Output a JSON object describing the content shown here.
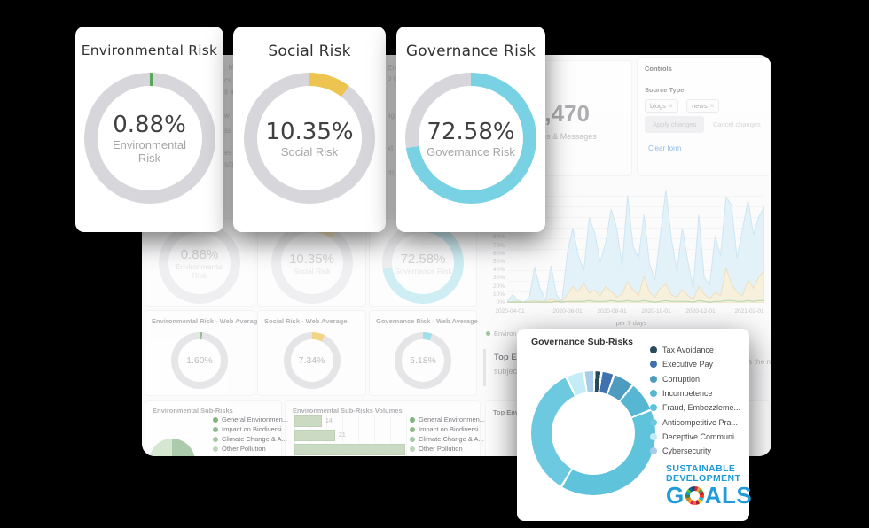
{
  "colors": {
    "env_green": "#58a65c",
    "social_yellow": "#edc44f",
    "gov_cyan": "#78d2e4",
    "track_gray": "#d7d7db",
    "sdg_blue": "#1f9cd7"
  },
  "chart_data": [
    {
      "type": "gauge-donut",
      "title": "Environmental Risk",
      "value_pct": 0.88,
      "value_label": "0.88%",
      "center_label_1": "Environmental",
      "center_label_2": "Risk",
      "color": "#58a65c",
      "track": "#d7d7db"
    },
    {
      "type": "gauge-donut",
      "title": "Social Risk",
      "value_pct": 10.35,
      "value_label": "10.35%",
      "center_label_1": "Social Risk",
      "center_label_2": "",
      "color": "#edc44f",
      "track": "#d7d7db"
    },
    {
      "type": "gauge-donut",
      "title": "Governance Risk",
      "value_pct": 72.58,
      "value_label": "72.58%",
      "center_label_1": "Governance Risk",
      "center_label_2": "",
      "color": "#78d2e4",
      "track": "#d7d7db"
    },
    {
      "type": "gauge-donut",
      "title": "Environmental Risk - Web Average",
      "value_pct": 1.6,
      "value_label": "1.60%",
      "color": "#58a65c",
      "track": "#dcdcdf"
    },
    {
      "type": "gauge-donut",
      "title": "Social Risk - Web Average",
      "value_pct": 7.34,
      "value_label": "7.34%",
      "color": "#edc44f",
      "track": "#dcdcdf"
    },
    {
      "type": "gauge-donut",
      "title": "Governance Risk - Web Average",
      "value_pct": 5.18,
      "value_label": "5.18%",
      "color": "#78d2e4",
      "track": "#dcdcdf"
    },
    {
      "type": "area",
      "x_tick_labels": [
        "2020-04-01",
        "2020-06-01",
        "2020-08-01",
        "2020-10-01",
        "2020-12-01",
        "2021-02-01"
      ],
      "xlabel": "per 7 days",
      "y_tick_labels": [
        "80%",
        "70%",
        "60%",
        "50%",
        "40%",
        "30%",
        "20%",
        "10%",
        "0%"
      ],
      "ylim_visible_ticks": [
        0,
        80
      ],
      "legend_fragment": "Environ",
      "series": [
        {
          "style": "area",
          "fill": "#d9edf7",
          "stroke": "#b9ddef",
          "values": [
            2,
            10,
            3,
            1,
            5,
            44,
            18,
            3,
            46,
            10,
            2,
            62,
            92,
            58,
            40,
            105,
            86,
            50,
            75,
            115,
            92,
            45,
            132,
            70,
            55,
            108,
            48,
            28,
            85,
            138,
            80,
            38,
            92,
            52,
            18,
            108,
            32,
            22,
            82,
            58,
            130,
            120,
            55,
            90,
            126,
            84,
            106,
            118
          ]
        },
        {
          "style": "area",
          "fill": "#f6ebcd",
          "stroke": "#e7d3a4",
          "values": [
            1,
            2,
            2,
            1,
            2,
            3,
            2,
            2,
            4,
            3,
            2,
            10,
            20,
            14,
            24,
            12,
            16,
            9,
            20,
            14,
            7,
            11,
            26,
            16,
            9,
            33,
            13,
            7,
            18,
            23,
            10,
            7,
            16,
            9,
            4,
            20,
            11,
            5,
            13,
            9,
            43,
            23,
            13,
            9,
            28,
            18,
            32,
            40
          ]
        },
        {
          "style": "line",
          "fill": "none",
          "stroke": "#8fc48f",
          "values": [
            1,
            1,
            1,
            1,
            1,
            1,
            1,
            1,
            1,
            2,
            1,
            2,
            2,
            2,
            2,
            3,
            2,
            2,
            2,
            3,
            2,
            2,
            3,
            2,
            2,
            3,
            2,
            1,
            2,
            3,
            2,
            2,
            2,
            2,
            1,
            3,
            2,
            1,
            2,
            2,
            3,
            3,
            2,
            2,
            3,
            2,
            3,
            3
          ]
        }
      ]
    },
    {
      "type": "bar-horizontal",
      "title": "Environmental Sub-Risks Volumes",
      "values": [
        14,
        21,
        57
      ],
      "value_labels": [
        "14",
        "21",
        ""
      ],
      "legend": [
        "General Environmen...",
        "Impact on Biodiversi...",
        "Climate Change & A...",
        "Other Pollution"
      ]
    },
    {
      "type": "donut",
      "title": "Governance Sub-Risks",
      "slices": [
        {
          "label": "Tax Avoidance",
          "value": 1.3,
          "color": "#264b5d"
        },
        {
          "label": "Executive Pay",
          "value": 2.8,
          "color": "#3f72ae"
        },
        {
          "label": "Corruption",
          "value": 5.0,
          "color": "#4d9cc0"
        },
        {
          "label": "Incompetence",
          "value": 7.5,
          "color": "#57b7d3"
        },
        {
          "label": "Fraud, Embezzleme...",
          "value": 40.0,
          "color": "#5fc3dc"
        },
        {
          "label": "Anticompetitive Pra...",
          "value": 34.5,
          "color": "#6cc9e0"
        },
        {
          "label": "Deceptive Communi...",
          "value": 4.2,
          "color": "#c3ecf7"
        },
        {
          "label": "Cybersecurity",
          "value": 2.2,
          "color": "#a9cceb"
        }
      ]
    }
  ],
  "dashboard": {
    "fragments_left": [
      ": M",
      "cs",
      "s a",
      "w",
      "ss",
      "es",
      "s/p"
    ],
    "fragments_right": [
      "En",
      "o c",
      "lig",
      "xt",
      "rn"
    ],
    "stat_card": {
      "value": "2,470",
      "label": "articles & Messages"
    },
    "controls": {
      "title": "Controls",
      "source_type_label": "Source Type",
      "tags": [
        {
          "label": "blogs",
          "close": "×"
        },
        {
          "label": "news",
          "close": "×"
        }
      ],
      "apply_label": "Apply changes",
      "cancel_label": "Cancel changes",
      "clear_label": "Clear form"
    },
    "top_esg": {
      "line1": "Top ES",
      "line2": "subjec",
      "right_fragment": "is the m"
    },
    "env_subrisks": {
      "title": "Environmental Sub-Risks",
      "legend": [
        "General Environmen...",
        "Impact on Biodiversi...",
        "Climate Change & A...",
        "Other Pollution"
      ]
    },
    "top_env_card": {
      "title": "Top Environm"
    }
  },
  "governance_card": {
    "title": "Governance Sub-Risks",
    "sdg": {
      "line1": "SUSTAINABLE",
      "line2": "DEVELOPMENT",
      "goals_prefix": "G",
      "goals_suffix": "ALS"
    }
  }
}
